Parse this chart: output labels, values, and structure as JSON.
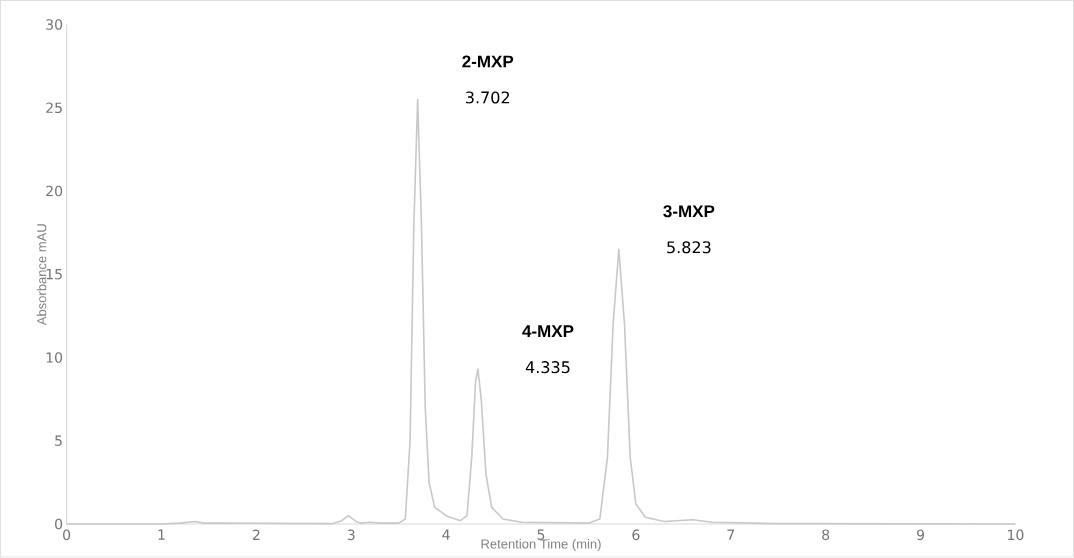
{
  "chart_data": {
    "type": "line",
    "xlabel": "Retention Time (min)",
    "ylabel": "Absorbance mAU",
    "xlim": [
      0,
      10
    ],
    "xticks": [
      0,
      1,
      2,
      3,
      4,
      5,
      6,
      7,
      8,
      9,
      10
    ],
    "ylim": [
      0,
      30
    ],
    "yticks": [
      0,
      5,
      10,
      15,
      20,
      25,
      30
    ],
    "grid": false,
    "marker": "none",
    "line_style": "solid",
    "series": [
      {
        "color": "#c8c8c8",
        "x": [
          0,
          1.0,
          1.2,
          1.35,
          1.45,
          1.6,
          2.8,
          2.9,
          2.97,
          3.05,
          3.1,
          3.2,
          3.3,
          3.5,
          3.57,
          3.62,
          3.66,
          3.7,
          3.74,
          3.78,
          3.82,
          3.88,
          4.0,
          4.15,
          4.22,
          4.27,
          4.31,
          4.335,
          4.37,
          4.42,
          4.48,
          4.6,
          4.8,
          5.5,
          5.62,
          5.7,
          5.76,
          5.82,
          5.88,
          5.94,
          6.0,
          6.1,
          6.3,
          6.6,
          6.8,
          7.5,
          10
        ],
        "values": [
          0,
          0,
          0.05,
          0.15,
          0.05,
          0.05,
          0.02,
          0.2,
          0.5,
          0.15,
          0.05,
          0.1,
          0.05,
          0.05,
          0.3,
          5,
          18,
          25.5,
          18,
          7,
          2.5,
          1,
          0.5,
          0.2,
          0.5,
          4,
          8.5,
          9.3,
          7.5,
          3,
          1,
          0.3,
          0.1,
          0.05,
          0.3,
          4,
          12,
          16.5,
          12,
          4,
          1.2,
          0.4,
          0.15,
          0.25,
          0.1,
          0.02,
          0
        ]
      }
    ],
    "annotations": [
      "2-MXP",
      "3.702",
      "4-MXP",
      "4.335",
      "3-MXP",
      "5.823"
    ]
  }
}
